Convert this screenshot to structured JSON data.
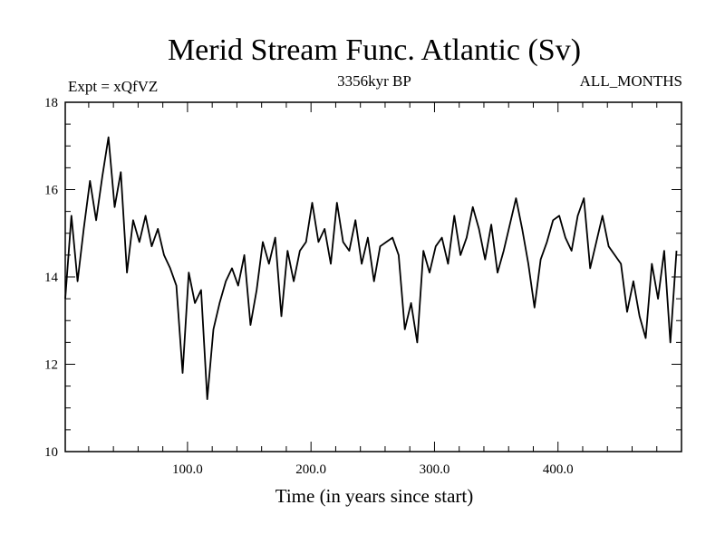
{
  "chart_data": {
    "type": "line",
    "title": "Merid Stream Func. Atlantic (Sv)",
    "subtitle_left": "Expt = xQfVZ",
    "subtitle_center": "3356kyr BP",
    "subtitle_right": "ALL_MONTHS",
    "xlabel": "Time (in years since start)",
    "ylabel": "",
    "xlim": [
      1,
      500
    ],
    "ylim": [
      10,
      18
    ],
    "xticks": [
      100,
      200,
      300,
      400
    ],
    "xtick_labels": [
      "100.0",
      "200.0",
      "300.0",
      "400.0"
    ],
    "yticks": [
      10,
      12,
      14,
      16,
      18
    ],
    "ytick_labels": [
      "10",
      "12",
      "14",
      "16",
      "18"
    ],
    "line_color": "#000000",
    "series": [
      {
        "name": "Merid Stream Func. Atlantic",
        "x_start": 1,
        "x_step": 5,
        "values": [
          13.5,
          15.4,
          13.9,
          15.1,
          16.2,
          15.3,
          16.3,
          17.2,
          15.6,
          16.4,
          14.1,
          15.3,
          14.8,
          15.4,
          14.7,
          15.1,
          14.5,
          14.2,
          13.8,
          11.8,
          14.1,
          13.4,
          13.7,
          11.2,
          12.8,
          13.4,
          13.9,
          14.2,
          13.8,
          14.5,
          12.9,
          13.7,
          14.8,
          14.3,
          14.9,
          13.1,
          14.6,
          13.9,
          14.6,
          14.8,
          15.7,
          14.8,
          15.1,
          14.3,
          15.7,
          14.8,
          14.6,
          15.3,
          14.3,
          14.9,
          13.9,
          14.7,
          14.8,
          14.9,
          14.5,
          12.8,
          13.4,
          12.5,
          14.6,
          14.1,
          14.7,
          14.9,
          14.3,
          15.4,
          14.5,
          14.9,
          15.6,
          15.1,
          14.4,
          15.2,
          14.1,
          14.6,
          15.2,
          15.8,
          15.1,
          14.3,
          13.3,
          14.4,
          14.8,
          15.3,
          15.4,
          14.9,
          14.6,
          15.4,
          15.8,
          14.2,
          14.8,
          15.4,
          14.7,
          14.5,
          14.3,
          13.2,
          13.9,
          13.1,
          12.6,
          14.3,
          13.5,
          14.6,
          12.5,
          14.6
        ]
      }
    ]
  }
}
